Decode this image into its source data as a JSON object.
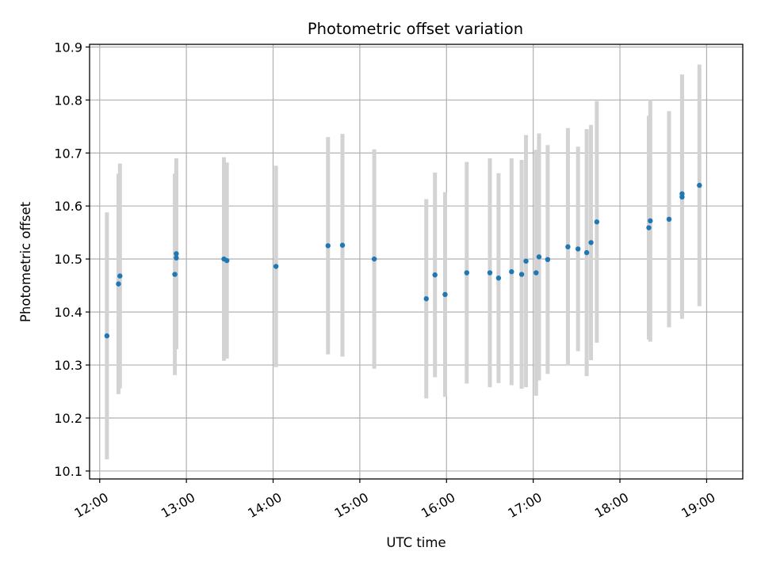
{
  "chart_data": {
    "type": "scatter",
    "title": "Photometric offset variation",
    "xlabel": "UTC time",
    "ylabel": "Photometric offset",
    "x_ticks": [
      "12:00",
      "13:00",
      "14:00",
      "15:00",
      "16:00",
      "17:00",
      "18:00",
      "19:00"
    ],
    "y_ticks": [
      "10.1",
      "10.2",
      "10.3",
      "10.4",
      "10.5",
      "10.6",
      "10.7",
      "10.8",
      "10.9"
    ],
    "xlim": [
      "11:53",
      "19:25"
    ],
    "ylim": [
      10.085,
      10.905
    ],
    "grid": true,
    "marker_color": "#1f77b4",
    "errorbar_color": "#d3d3d3",
    "points": [
      {
        "x": "12:05",
        "y": 10.355,
        "err": 0.233
      },
      {
        "x": "12:13",
        "y": 10.453,
        "err": 0.208
      },
      {
        "x": "12:14",
        "y": 10.468,
        "err": 0.212
      },
      {
        "x": "12:52",
        "y": 10.471,
        "err": 0.19
      },
      {
        "x": "12:53",
        "y": 10.502,
        "err": 0.17
      },
      {
        "x": "12:53",
        "y": 10.51,
        "err": 0.18
      },
      {
        "x": "13:26",
        "y": 10.5,
        "err": 0.192
      },
      {
        "x": "13:28",
        "y": 10.497,
        "err": 0.185
      },
      {
        "x": "14:02",
        "y": 10.486,
        "err": 0.19
      },
      {
        "x": "14:38",
        "y": 10.525,
        "err": 0.205
      },
      {
        "x": "14:48",
        "y": 10.526,
        "err": 0.21
      },
      {
        "x": "15:10",
        "y": 10.5,
        "err": 0.207
      },
      {
        "x": "15:46",
        "y": 10.425,
        "err": 0.188
      },
      {
        "x": "15:52",
        "y": 10.47,
        "err": 0.193
      },
      {
        "x": "15:59",
        "y": 10.433,
        "err": 0.193
      },
      {
        "x": "16:14",
        "y": 10.474,
        "err": 0.209
      },
      {
        "x": "16:30",
        "y": 10.474,
        "err": 0.216
      },
      {
        "x": "16:36",
        "y": 10.464,
        "err": 0.198
      },
      {
        "x": "16:45",
        "y": 10.476,
        "err": 0.214
      },
      {
        "x": "16:52",
        "y": 10.471,
        "err": 0.216
      },
      {
        "x": "16:55",
        "y": 10.496,
        "err": 0.238
      },
      {
        "x": "17:02",
        "y": 10.474,
        "err": 0.232
      },
      {
        "x": "17:04",
        "y": 10.504,
        "err": 0.233
      },
      {
        "x": "17:10",
        "y": 10.499,
        "err": 0.216
      },
      {
        "x": "17:24",
        "y": 10.523,
        "err": 0.224
      },
      {
        "x": "17:31",
        "y": 10.519,
        "err": 0.193
      },
      {
        "x": "17:37",
        "y": 10.512,
        "err": 0.233
      },
      {
        "x": "17:40",
        "y": 10.531,
        "err": 0.222
      },
      {
        "x": "17:44",
        "y": 10.57,
        "err": 0.228
      },
      {
        "x": "18:20",
        "y": 10.559,
        "err": 0.211
      },
      {
        "x": "18:21",
        "y": 10.572,
        "err": 0.228
      },
      {
        "x": "18:34",
        "y": 10.575,
        "err": 0.204
      },
      {
        "x": "18:43",
        "y": 10.617,
        "err": 0.23
      },
      {
        "x": "18:43",
        "y": 10.623,
        "err": 0.225
      },
      {
        "x": "18:55",
        "y": 10.639,
        "err": 0.228
      }
    ]
  }
}
